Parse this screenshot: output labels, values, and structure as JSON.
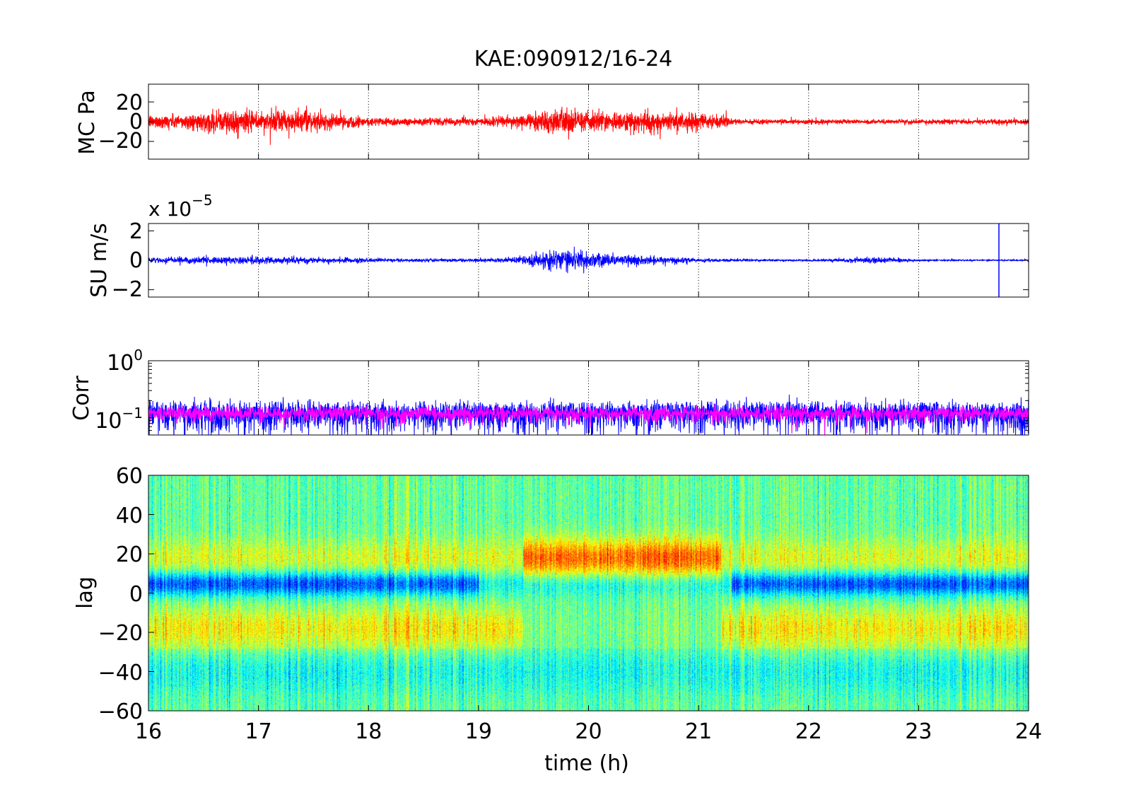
{
  "title": "KAE:090912/16-24",
  "xlabel": "time (h)",
  "x_ticks": [
    "16",
    "17",
    "18",
    "19",
    "20",
    "21",
    "22",
    "23",
    "24"
  ],
  "colors": {
    "mc_trace": "#ff0000",
    "su_trace": "#0000ff",
    "corr_raw": "#0000ff",
    "corr_smooth": "#ff00ff"
  },
  "chart_data": [
    {
      "type": "line",
      "ylabel": "MC Pa",
      "xlim": [
        16,
        24
      ],
      "ylim": [
        -38,
        38
      ],
      "y_ticks": [
        "20",
        "0",
        "−20"
      ],
      "series": [
        {
          "envelope_x": [
            16,
            16.5,
            16.7,
            17,
            17.2,
            17.5,
            17.8,
            18,
            18.5,
            19,
            19.3,
            19.5,
            19.8,
            20,
            20.3,
            20.5,
            20.8,
            21,
            21.2,
            21.3,
            22,
            23,
            24
          ],
          "envelope_amplitude": [
            7,
            9,
            14,
            11,
            12,
            10,
            7,
            5,
            4,
            4,
            6,
            10,
            14,
            11,
            10,
            12,
            10,
            9,
            7,
            3,
            2.5,
            2.5,
            3
          ]
        }
      ]
    },
    {
      "type": "line",
      "ylabel": "SU m/s",
      "multiplier": "x 10",
      "multiplier_exp": "−5",
      "xlim": [
        16,
        24
      ],
      "ylim": [
        -2.5,
        2.5
      ],
      "y_ticks": [
        "2",
        "0",
        "−2"
      ],
      "series": [
        {
          "envelope_x": [
            16,
            16.5,
            17,
            17.5,
            18,
            18.5,
            19,
            19.3,
            19.5,
            19.8,
            20,
            20.3,
            20.5,
            21,
            21.3,
            21.5,
            22,
            22.7,
            23,
            23.5,
            24
          ],
          "envelope_amplitude": [
            0.2,
            0.25,
            0.3,
            0.2,
            0.15,
            0.12,
            0.12,
            0.25,
            0.5,
            0.8,
            0.6,
            0.4,
            0.35,
            0.15,
            0.1,
            0.08,
            0.06,
            0.25,
            0.05,
            0.05,
            0.05
          ]
        }
      ]
    },
    {
      "type": "line",
      "ylabel": "Corr",
      "yscale": "log",
      "xlim": [
        16,
        24
      ],
      "ylim": [
        0.05,
        1
      ],
      "y_ticks": [
        {
          "base": "10",
          "exp": "0",
          "value": 1
        },
        {
          "base": "10",
          "exp": "−1",
          "value": 0.1
        }
      ],
      "series": [
        {
          "kind": "raw",
          "center": 0.12,
          "spread": 0.035
        },
        {
          "kind": "smoothed",
          "center": 0.12,
          "spread": 0.018
        }
      ]
    },
    {
      "type": "heatmap",
      "ylabel": "lag",
      "xlim": [
        16,
        24
      ],
      "ylim": [
        -60,
        60
      ],
      "y_ticks": [
        "60",
        "40",
        "20",
        "0",
        "−20",
        "−40",
        "−60"
      ],
      "colormap": "jet",
      "features": {
        "trough_lag": 5,
        "positive_band_lag": 18,
        "negative_band_lag": -18,
        "strong_positive_span": [
          19.4,
          21.2
        ],
        "trough_span_1": [
          16,
          19.0
        ],
        "trough_span_2": [
          21.3,
          24
        ]
      }
    }
  ]
}
